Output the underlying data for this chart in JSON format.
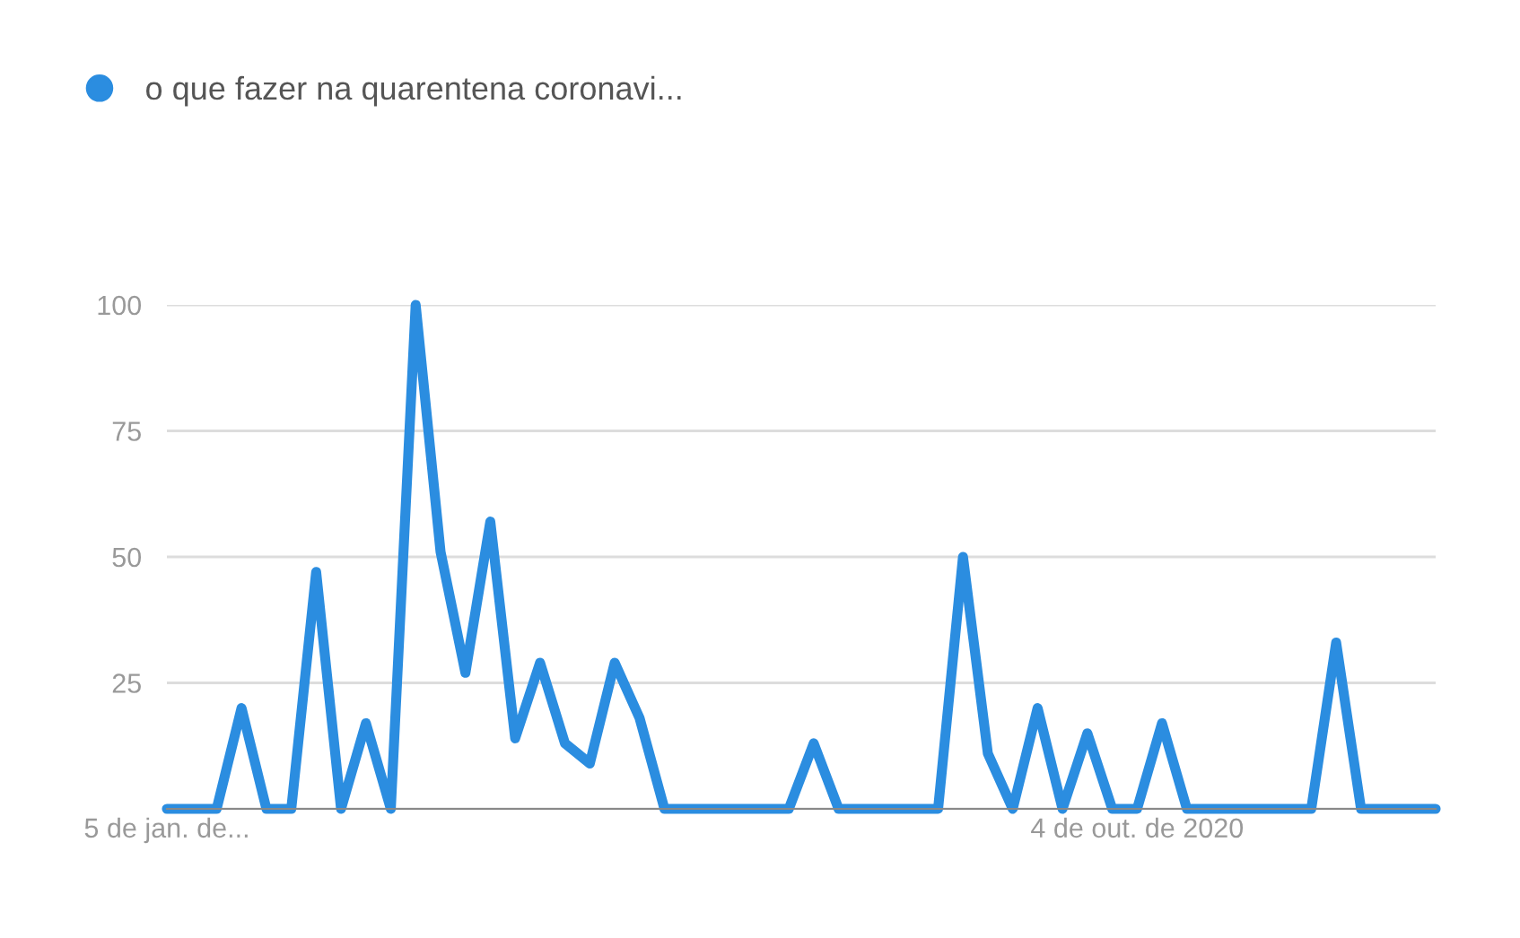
{
  "chart_data": {
    "type": "line",
    "x": [
      "2020-01-05",
      "2020-01-12",
      "2020-01-19",
      "2020-01-26",
      "2020-02-02",
      "2020-02-09",
      "2020-02-16",
      "2020-02-23",
      "2020-03-01",
      "2020-03-08",
      "2020-03-15",
      "2020-03-22",
      "2020-03-29",
      "2020-04-05",
      "2020-04-12",
      "2020-04-19",
      "2020-04-26",
      "2020-05-03",
      "2020-05-10",
      "2020-05-17",
      "2020-05-24",
      "2020-05-31",
      "2020-06-07",
      "2020-06-14",
      "2020-06-21",
      "2020-06-28",
      "2020-07-05",
      "2020-07-12",
      "2020-07-19",
      "2020-07-26",
      "2020-08-02",
      "2020-08-09",
      "2020-08-16",
      "2020-08-23",
      "2020-08-30",
      "2020-09-06",
      "2020-09-13",
      "2020-09-20",
      "2020-09-27",
      "2020-10-04",
      "2020-10-11",
      "2020-10-18",
      "2020-10-25",
      "2020-11-01",
      "2020-11-08",
      "2020-11-15",
      "2020-11-22",
      "2020-11-29",
      "2020-12-06",
      "2020-12-13",
      "2020-12-20",
      "2020-12-27"
    ],
    "series": [
      {
        "name": "o que fazer na quarentena coronavi...",
        "color": "#2b8de0",
        "values": [
          0,
          0,
          0,
          20,
          0,
          0,
          47,
          0,
          17,
          0,
          100,
          51,
          27,
          57,
          14,
          29,
          13,
          9,
          29,
          18,
          0,
          0,
          0,
          0,
          0,
          0,
          13,
          0,
          0,
          0,
          0,
          0,
          50,
          11,
          0,
          20,
          0,
          15,
          0,
          0,
          17,
          0,
          0,
          0,
          0,
          0,
          0,
          33,
          0,
          0,
          0,
          0
        ]
      }
    ],
    "xlim": [
      "2020-01-05",
      "2020-12-27"
    ],
    "xticks": [
      {
        "value": "2020-01-05",
        "label": "5 de jan. de..."
      },
      {
        "value": "2020-10-04",
        "label": "4 de out. de 2020"
      }
    ],
    "ylim": [
      0,
      100
    ],
    "yticks": [
      {
        "value": 0,
        "label": null
      },
      25,
      50,
      75,
      100
    ],
    "grid": "y",
    "legend": "top left",
    "marker": "none",
    "line_style": "solid"
  }
}
